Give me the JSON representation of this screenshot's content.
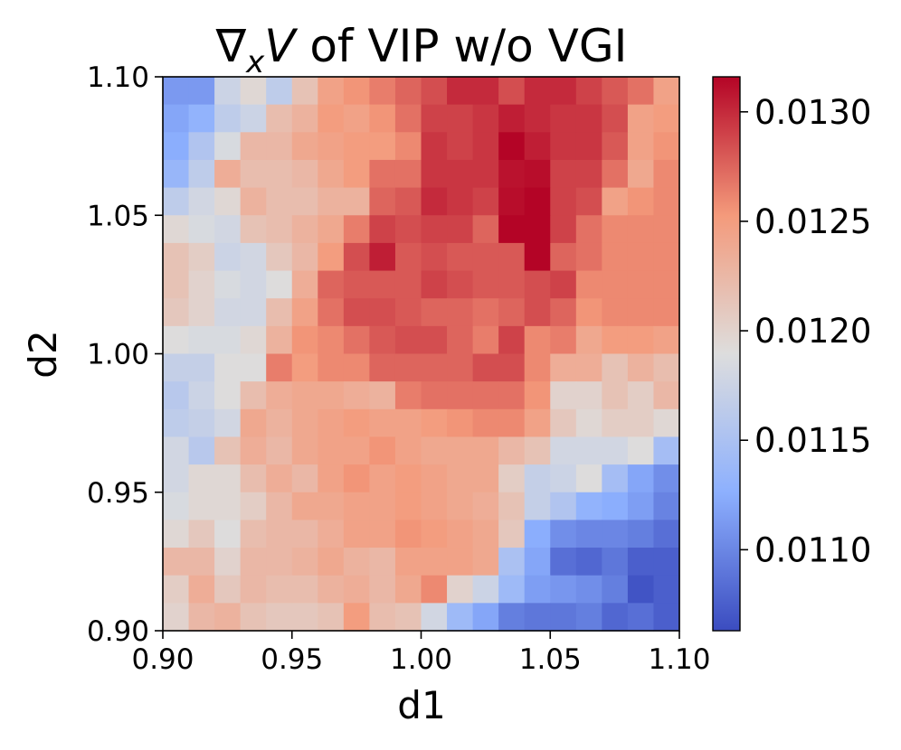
{
  "chart_data": {
    "type": "heatmap",
    "title_prefix": "∇",
    "title_sub": "x",
    "title_var": "V",
    "title_rest": " of VIP w/o VGI",
    "xlabel": "d1",
    "ylabel": "d2",
    "xlim": [
      0.9,
      1.1
    ],
    "ylim": [
      0.9,
      1.1
    ],
    "x_ticks": [
      "0.90",
      "0.95",
      "1.00",
      "1.05",
      "1.10"
    ],
    "y_ticks": [
      "0.90",
      "0.95",
      "1.00",
      "1.05",
      "1.10"
    ],
    "colormap": "coolwarm",
    "vmin": 0.01063,
    "vmax": 0.01316,
    "colorbar_ticks": [
      "0.0110",
      "0.0115",
      "0.0120",
      "0.0125",
      "0.0130"
    ],
    "colorbar_tick_values": [
      0.011,
      0.0115,
      0.012,
      0.0125,
      0.013
    ],
    "grid_size": [
      20,
      20
    ],
    "row_order": "top row = d2 1.10, bottom row = d2 0.90; columns d1 0.90 to 1.10",
    "values": [
      [
        0.01112,
        0.01112,
        0.01175,
        0.01195,
        0.01165,
        0.01215,
        0.01245,
        0.01255,
        0.01265,
        0.01275,
        0.01285,
        0.013,
        0.013,
        0.01285,
        0.013,
        0.013,
        0.0129,
        0.0128,
        0.0127,
        0.01245
      ],
      [
        0.0112,
        0.0113,
        0.01165,
        0.01175,
        0.0122,
        0.0123,
        0.0125,
        0.01245,
        0.01255,
        0.0127,
        0.0129,
        0.0129,
        0.01295,
        0.01305,
        0.013,
        0.01295,
        0.01295,
        0.01285,
        0.01245,
        0.0125
      ],
      [
        0.01125,
        0.01155,
        0.01185,
        0.01225,
        0.01225,
        0.0124,
        0.01245,
        0.0125,
        0.0125,
        0.0126,
        0.01295,
        0.0129,
        0.01295,
        0.01316,
        0.01305,
        0.01295,
        0.01295,
        0.0128,
        0.01245,
        0.01255
      ],
      [
        0.01135,
        0.01165,
        0.01235,
        0.0122,
        0.0122,
        0.01225,
        0.0124,
        0.0125,
        0.0127,
        0.0127,
        0.01295,
        0.01295,
        0.01295,
        0.0131,
        0.01312,
        0.0129,
        0.0129,
        0.0127,
        0.0124,
        0.0126
      ],
      [
        0.01165,
        0.0118,
        0.01195,
        0.0123,
        0.0122,
        0.0122,
        0.0123,
        0.0123,
        0.01275,
        0.0128,
        0.013,
        0.01295,
        0.0129,
        0.01312,
        0.01316,
        0.0129,
        0.01285,
        0.01245,
        0.01255,
        0.0126
      ],
      [
        0.01195,
        0.01185,
        0.0118,
        0.01215,
        0.0122,
        0.0123,
        0.0124,
        0.01265,
        0.0129,
        0.01285,
        0.0129,
        0.0129,
        0.01275,
        0.01316,
        0.01316,
        0.0129,
        0.0127,
        0.0126,
        0.0126,
        0.0126
      ],
      [
        0.01215,
        0.01205,
        0.01175,
        0.0118,
        0.0121,
        0.01225,
        0.0125,
        0.01285,
        0.01305,
        0.0128,
        0.01285,
        0.0128,
        0.0128,
        0.0128,
        0.01316,
        0.01275,
        0.0127,
        0.0126,
        0.0126,
        0.0126
      ],
      [
        0.01215,
        0.012,
        0.01185,
        0.0118,
        0.0119,
        0.01235,
        0.01275,
        0.0128,
        0.0128,
        0.0128,
        0.0129,
        0.01285,
        0.0128,
        0.0128,
        0.01285,
        0.0129,
        0.0126,
        0.0126,
        0.0126,
        0.0126
      ],
      [
        0.0121,
        0.012,
        0.0118,
        0.0118,
        0.0122,
        0.01245,
        0.0127,
        0.01285,
        0.01285,
        0.0128,
        0.01275,
        0.01275,
        0.0127,
        0.01275,
        0.01285,
        0.01275,
        0.01255,
        0.0126,
        0.0126,
        0.0126
      ],
      [
        0.0119,
        0.01185,
        0.01185,
        0.01195,
        0.0123,
        0.01255,
        0.0126,
        0.0127,
        0.0128,
        0.01285,
        0.01285,
        0.01275,
        0.01265,
        0.0129,
        0.0126,
        0.01265,
        0.0124,
        0.0125,
        0.0125,
        0.01245
      ],
      [
        0.0117,
        0.0117,
        0.0119,
        0.0119,
        0.01265,
        0.0125,
        0.0126,
        0.0126,
        0.01275,
        0.01275,
        0.01275,
        0.01275,
        0.01285,
        0.01285,
        0.0126,
        0.01235,
        0.01235,
        0.01215,
        0.0123,
        0.0122
      ],
      [
        0.0116,
        0.01175,
        0.0119,
        0.0122,
        0.01235,
        0.0124,
        0.0124,
        0.01235,
        0.0123,
        0.01265,
        0.0127,
        0.0127,
        0.0127,
        0.0127,
        0.01255,
        0.012,
        0.012,
        0.01215,
        0.01205,
        0.01225
      ],
      [
        0.01165,
        0.0117,
        0.0118,
        0.0124,
        0.0123,
        0.0124,
        0.01245,
        0.0125,
        0.01245,
        0.01245,
        0.0125,
        0.01255,
        0.0126,
        0.0126,
        0.01245,
        0.0121,
        0.01195,
        0.01205,
        0.01205,
        0.01195
      ],
      [
        0.0118,
        0.0116,
        0.01215,
        0.01235,
        0.01225,
        0.0124,
        0.01245,
        0.01245,
        0.01255,
        0.01245,
        0.0124,
        0.0124,
        0.0124,
        0.01225,
        0.01215,
        0.0118,
        0.0118,
        0.0118,
        0.0119,
        0.01145
      ],
      [
        0.0118,
        0.01195,
        0.01195,
        0.0122,
        0.01235,
        0.01225,
        0.01245,
        0.01255,
        0.01245,
        0.0125,
        0.01245,
        0.0124,
        0.0124,
        0.01205,
        0.0117,
        0.01175,
        0.0119,
        0.01145,
        0.0112,
        0.01105
      ],
      [
        0.01185,
        0.01195,
        0.01195,
        0.01205,
        0.01225,
        0.0124,
        0.0124,
        0.01245,
        0.01245,
        0.0125,
        0.01245,
        0.0124,
        0.01235,
        0.01215,
        0.0117,
        0.01155,
        0.0113,
        0.01125,
        0.01115,
        0.01098
      ],
      [
        0.01195,
        0.0121,
        0.0119,
        0.0122,
        0.01225,
        0.01225,
        0.01235,
        0.01245,
        0.01245,
        0.01255,
        0.0125,
        0.01245,
        0.0124,
        0.0121,
        0.01125,
        0.01105,
        0.011,
        0.011,
        0.01095,
        0.01085
      ],
      [
        0.01225,
        0.01225,
        0.012,
        0.01225,
        0.01225,
        0.0123,
        0.0124,
        0.0123,
        0.01225,
        0.01245,
        0.01245,
        0.01245,
        0.0124,
        0.0115,
        0.0112,
        0.01085,
        0.0108,
        0.0109,
        0.01075,
        0.01075
      ],
      [
        0.01205,
        0.01235,
        0.0121,
        0.01225,
        0.0122,
        0.0122,
        0.0123,
        0.01235,
        0.01225,
        0.0124,
        0.0126,
        0.012,
        0.01175,
        0.0114,
        0.01115,
        0.0111,
        0.01105,
        0.01095,
        0.01068,
        0.01075
      ],
      [
        0.012,
        0.01225,
        0.0123,
        0.01215,
        0.0121,
        0.0121,
        0.01215,
        0.0125,
        0.0122,
        0.01215,
        0.0118,
        0.0114,
        0.0112,
        0.01095,
        0.0109,
        0.0109,
        0.01095,
        0.0108,
        0.01085,
        0.01075
      ]
    ]
  }
}
